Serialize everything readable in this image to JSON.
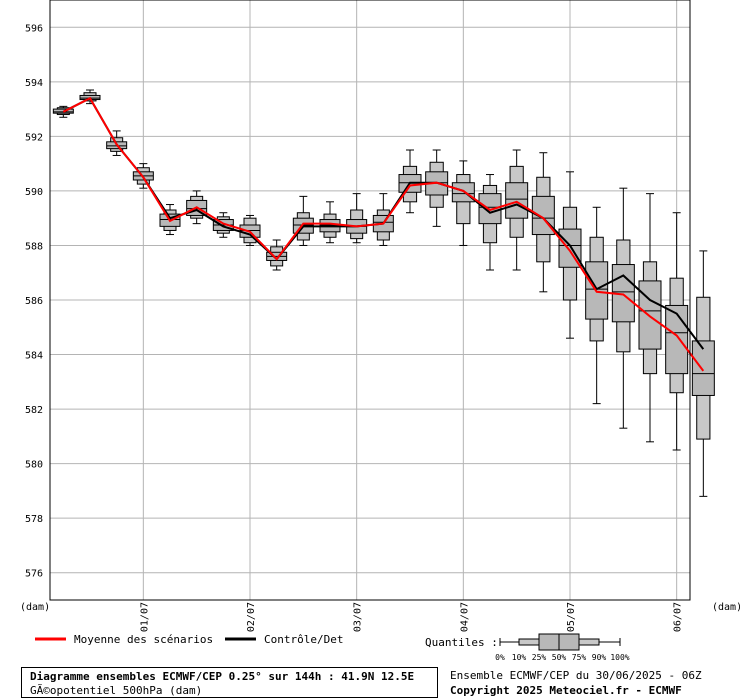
{
  "chart_data": {
    "type": "boxplot",
    "title": "Diagramme ensembles ECMWF/CEP 0.25° sur 144h : 41.9N 12.5E",
    "subtitle": "GÃ©opotentiel 500hPa (dam)",
    "ylabel": "(dam)",
    "ylim": [
      575,
      597
    ],
    "yticks": [
      576,
      578,
      580,
      582,
      584,
      586,
      588,
      590,
      592,
      594,
      596
    ],
    "xlim": [
      -3,
      141
    ],
    "x_ticks": [
      {
        "label": "01/07",
        "x": 18
      },
      {
        "label": "02/07",
        "x": 42
      },
      {
        "label": "03/07",
        "x": 66
      },
      {
        "label": "04/07",
        "x": 90
      },
      {
        "label": "05/07",
        "x": 114
      },
      {
        "label": "06/07",
        "x": 138
      }
    ],
    "x_unit": "hours",
    "boxes": [
      {
        "x": 0,
        "p0": 592.7,
        "p10": 592.8,
        "p25": 592.85,
        "p50": 592.9,
        "p75": 593.0,
        "p90": 593.05,
        "p100": 593.1
      },
      {
        "x": 6,
        "p0": 593.2,
        "p10": 593.3,
        "p25": 593.35,
        "p50": 593.4,
        "p75": 593.5,
        "p90": 593.6,
        "p100": 593.7
      },
      {
        "x": 12,
        "p0": 591.3,
        "p10": 591.45,
        "p25": 591.55,
        "p50": 591.65,
        "p75": 591.8,
        "p90": 591.95,
        "p100": 592.2
      },
      {
        "x": 18,
        "p0": 590.1,
        "p10": 590.25,
        "p25": 590.4,
        "p50": 590.55,
        "p75": 590.7,
        "p90": 590.85,
        "p100": 591.0
      },
      {
        "x": 24,
        "p0": 588.4,
        "p10": 588.55,
        "p25": 588.7,
        "p50": 588.95,
        "p75": 589.15,
        "p90": 589.3,
        "p100": 589.5
      },
      {
        "x": 30,
        "p0": 588.8,
        "p10": 589.0,
        "p25": 589.1,
        "p50": 589.35,
        "p75": 589.65,
        "p90": 589.8,
        "p100": 590.0
      },
      {
        "x": 36,
        "p0": 588.3,
        "p10": 588.45,
        "p25": 588.55,
        "p50": 588.75,
        "p75": 588.95,
        "p90": 589.05,
        "p100": 589.2
      },
      {
        "x": 42,
        "p0": 588.0,
        "p10": 588.1,
        "p25": 588.3,
        "p50": 588.55,
        "p75": 588.75,
        "p90": 589.0,
        "p100": 589.1
      },
      {
        "x": 48,
        "p0": 587.1,
        "p10": 587.25,
        "p25": 587.45,
        "p50": 587.6,
        "p75": 587.75,
        "p90": 587.95,
        "p100": 588.2
      },
      {
        "x": 54,
        "p0": 588.0,
        "p10": 588.2,
        "p25": 588.45,
        "p50": 588.75,
        "p75": 589.0,
        "p90": 589.2,
        "p100": 589.8
      },
      {
        "x": 60,
        "p0": 588.1,
        "p10": 588.3,
        "p25": 588.5,
        "p50": 588.75,
        "p75": 588.95,
        "p90": 589.15,
        "p100": 589.6
      },
      {
        "x": 66,
        "p0": 588.1,
        "p10": 588.25,
        "p25": 588.45,
        "p50": 588.7,
        "p75": 588.95,
        "p90": 589.3,
        "p100": 589.9
      },
      {
        "x": 72,
        "p0": 588.0,
        "p10": 588.2,
        "p25": 588.5,
        "p50": 588.85,
        "p75": 589.1,
        "p90": 589.3,
        "p100": 589.9
      },
      {
        "x": 78,
        "p0": 589.2,
        "p10": 589.6,
        "p25": 589.95,
        "p50": 590.3,
        "p75": 590.6,
        "p90": 590.9,
        "p100": 591.5
      },
      {
        "x": 84,
        "p0": 588.7,
        "p10": 589.4,
        "p25": 589.85,
        "p50": 590.3,
        "p75": 590.7,
        "p90": 591.05,
        "p100": 591.5
      },
      {
        "x": 90,
        "p0": 588.0,
        "p10": 588.8,
        "p25": 589.6,
        "p50": 589.9,
        "p75": 590.3,
        "p90": 590.6,
        "p100": 591.1
      },
      {
        "x": 96,
        "p0": 587.1,
        "p10": 588.1,
        "p25": 588.8,
        "p50": 589.4,
        "p75": 589.9,
        "p90": 590.2,
        "p100": 590.6
      },
      {
        "x": 102,
        "p0": 587.1,
        "p10": 588.3,
        "p25": 589.0,
        "p50": 589.7,
        "p75": 590.3,
        "p90": 590.9,
        "p100": 591.5
      },
      {
        "x": 108,
        "p0": 586.3,
        "p10": 587.4,
        "p25": 588.4,
        "p50": 589.0,
        "p75": 589.8,
        "p90": 590.5,
        "p100": 591.4
      },
      {
        "x": 114,
        "p0": 584.6,
        "p10": 586.0,
        "p25": 587.2,
        "p50": 588.0,
        "p75": 588.6,
        "p90": 589.4,
        "p100": 590.7
      },
      {
        "x": 120,
        "p0": 582.2,
        "p10": 584.5,
        "p25": 585.3,
        "p50": 586.4,
        "p75": 587.4,
        "p90": 588.3,
        "p100": 589.4
      },
      {
        "x": 126,
        "p0": 581.3,
        "p10": 584.1,
        "p25": 585.2,
        "p50": 586.3,
        "p75": 587.3,
        "p90": 588.2,
        "p100": 590.1
      },
      {
        "x": 132,
        "p0": 580.8,
        "p10": 583.3,
        "p25": 584.2,
        "p50": 585.6,
        "p75": 586.7,
        "p90": 587.4,
        "p100": 589.9
      },
      {
        "x": 138,
        "p0": 580.5,
        "p10": 582.6,
        "p25": 583.3,
        "p50": 584.8,
        "p75": 585.8,
        "p90": 586.8,
        "p100": 589.2
      },
      {
        "x": 144,
        "p0": 578.8,
        "p10": 580.9,
        "p25": 582.5,
        "p50": 583.3,
        "p75": 584.5,
        "p90": 586.1,
        "p100": 587.8
      }
    ],
    "series": [
      {
        "name": "Moyenne des scénarios",
        "color": "#ff0000",
        "values": [
          592.9,
          593.4,
          591.7,
          590.5,
          588.9,
          589.4,
          588.8,
          588.5,
          587.5,
          588.8,
          588.8,
          588.7,
          588.8,
          590.2,
          590.3,
          590.0,
          589.3,
          589.6,
          589.0,
          587.8,
          586.3,
          586.2,
          585.4,
          584.7,
          583.4
        ]
      },
      {
        "name": "Contrôle/Det",
        "color": "#000000",
        "values": [
          592.9,
          593.4,
          591.7,
          590.5,
          589.0,
          589.3,
          588.7,
          588.4,
          587.5,
          588.7,
          588.7,
          588.7,
          588.8,
          590.3,
          590.3,
          590.0,
          589.2,
          589.5,
          589.0,
          588.0,
          586.4,
          586.9,
          586.0,
          585.5,
          584.2
        ]
      }
    ],
    "legend": {
      "mean_label": "Moyenne des scénarios",
      "control_label": "Contrôle/Det",
      "quantiles_label": "Quantiles :",
      "quantile_ticks": [
        "0%",
        "10%",
        "25%",
        "50%",
        "75%",
        "90%",
        "100%"
      ]
    },
    "grid": true
  },
  "footer": {
    "run_info": "Ensemble ECMWF/CEP du 30/06/2025 - 06Z",
    "copyright": "Copyright 2025 Meteociel.fr - ECMWF"
  },
  "colors": {
    "box_fill": "#c8c8c8",
    "grid": "#b4b4b4",
    "mean": "#ff0000",
    "control": "#000000"
  }
}
